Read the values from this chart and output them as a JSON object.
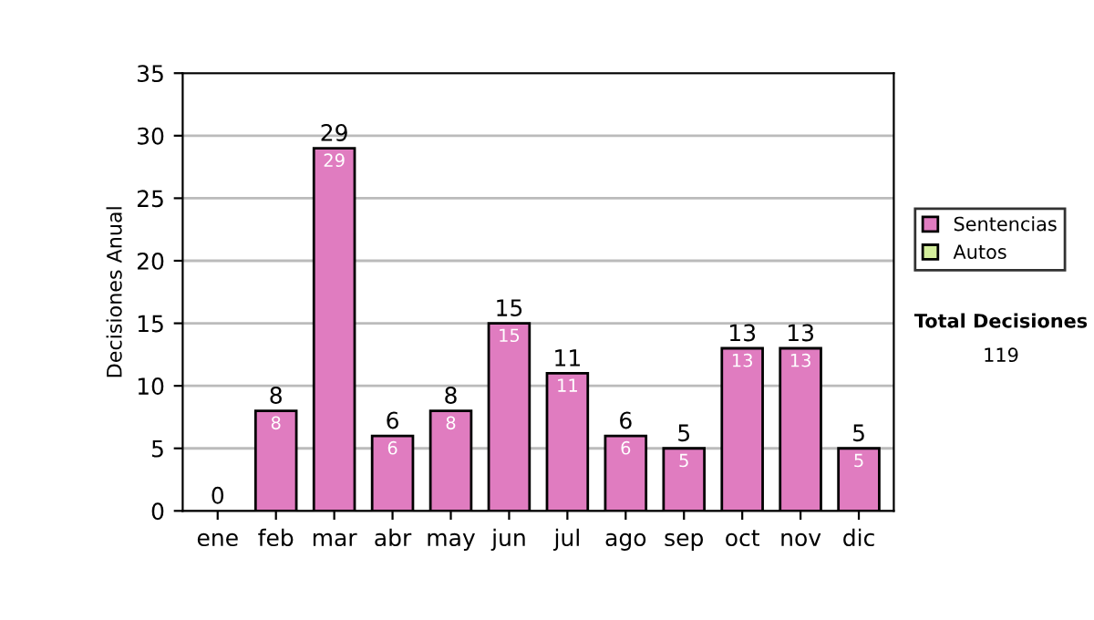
{
  "chart_data": {
    "type": "bar",
    "stacked": true,
    "ylabel": "Decisiones Anual",
    "categories": [
      "ene",
      "feb",
      "mar",
      "abr",
      "may",
      "jun",
      "jul",
      "ago",
      "sep",
      "oct",
      "nov",
      "dic"
    ],
    "series": [
      {
        "name": "Sentencias",
        "color": "#e07cc0",
        "values": [
          0,
          8,
          29,
          6,
          8,
          15,
          11,
          6,
          5,
          13,
          13,
          5
        ],
        "value_labels": [
          null,
          "8",
          "29",
          "6",
          "8",
          "15",
          "11",
          "6",
          "5",
          "13",
          "13",
          "5"
        ]
      },
      {
        "name": "Autos",
        "color": "#d4ee9c",
        "values": [
          0,
          0,
          0,
          0,
          0,
          0,
          0,
          0,
          0,
          0,
          0,
          0
        ]
      }
    ],
    "totals": [
      "0",
      "8",
      "29",
      "6",
      "8",
      "15",
      "11",
      "6",
      "5",
      "13",
      "13",
      "5"
    ],
    "ylim": [
      0,
      35
    ],
    "yticks": [
      0,
      5,
      10,
      15,
      20,
      25,
      30,
      35
    ],
    "grid": "y",
    "legend": "right",
    "annotations": [
      "Total Decisiones",
      "119"
    ]
  }
}
